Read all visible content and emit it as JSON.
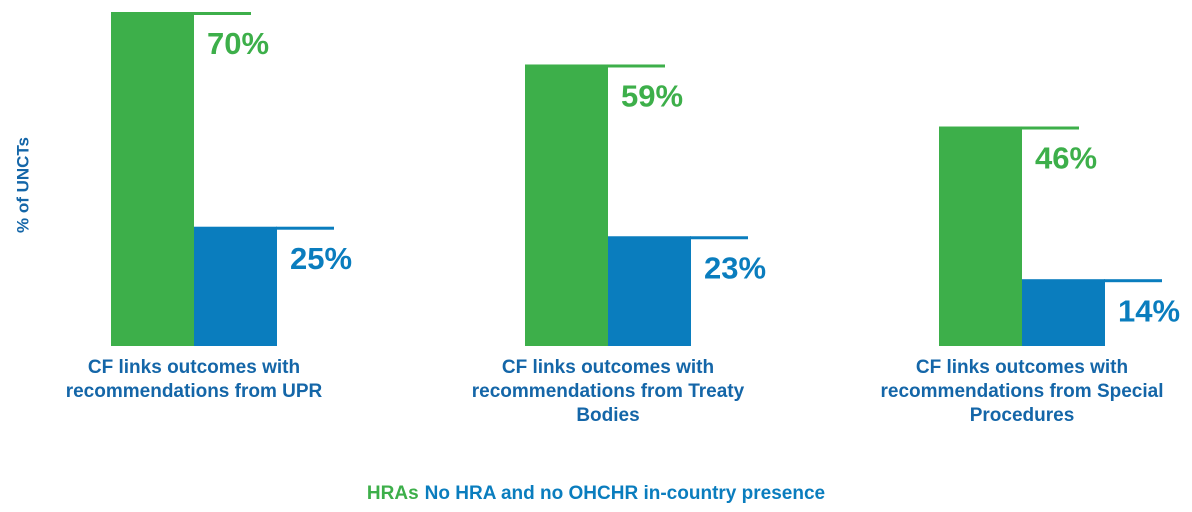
{
  "chart_data": {
    "type": "bar",
    "y_label": "% of UNCTs",
    "categories": [
      "CF links outcomes with recommendations from UPR",
      "CF links outcomes with recommendations from Treaty Bodies",
      "CF links outcomes with recommendations from Special Procedures"
    ],
    "series": [
      {
        "name": "HRAs",
        "color": "#3daf4a",
        "values": [
          70,
          59,
          46
        ],
        "value_labels": [
          "70%",
          "59%",
          "46%"
        ]
      },
      {
        "name": "No HRA and no OHCHR in-country presence",
        "color": "#0a7dbe",
        "values": [
          25,
          23,
          14
        ],
        "value_labels": [
          "25%",
          "23%",
          "14%"
        ]
      }
    ],
    "ylim": [
      0,
      70
    ],
    "legend": "bottom"
  }
}
